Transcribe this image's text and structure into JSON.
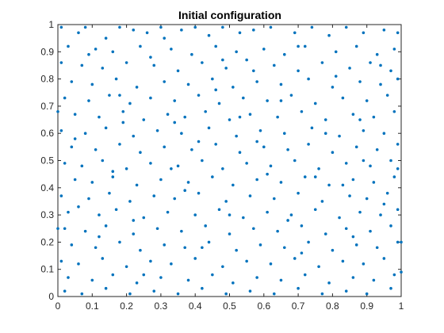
{
  "chart_data": {
    "type": "scatter",
    "title": "Initial configuration",
    "xlabel": "",
    "ylabel": "",
    "xlim": [
      0,
      1
    ],
    "ylim": [
      0,
      1
    ],
    "grid": false,
    "box": true,
    "legend": "none",
    "x_ticks": [
      "0",
      "0.1",
      "0.2",
      "0.3",
      "0.4",
      "0.5",
      "0.6",
      "0.7",
      "0.8",
      "0.9",
      "1"
    ],
    "y_ticks": [
      "0",
      "0.1",
      "0.2",
      "0.3",
      "0.4",
      "0.5",
      "0.6",
      "0.7",
      "0.8",
      "0.9",
      "1"
    ],
    "x_tick_values": [
      0,
      0.1,
      0.2,
      0.3,
      0.4,
      0.5,
      0.6,
      0.7,
      0.8,
      0.9,
      1
    ],
    "y_tick_values": [
      0,
      0.1,
      0.2,
      0.3,
      0.4,
      0.5,
      0.6,
      0.7,
      0.8,
      0.9,
      1
    ],
    "marker_color": "#0072BD",
    "series": [
      {
        "points": [
          [
            0.01,
            0.99
          ],
          [
            0.06,
            0.97
          ],
          [
            0.08,
            0.99
          ],
          [
            0.14,
            0.95
          ],
          [
            0.18,
            0.99
          ],
          [
            0.22,
            0.98
          ],
          [
            0.26,
            0.97
          ],
          [
            0.3,
            0.99
          ],
          [
            0.36,
            0.98
          ],
          [
            0.4,
            0.99
          ],
          [
            0.44,
            0.96
          ],
          [
            0.48,
            0.99
          ],
          [
            0.53,
            0.97
          ],
          [
            0.57,
            0.98
          ],
          [
            0.62,
            0.99
          ],
          [
            0.69,
            0.97
          ],
          [
            0.74,
            0.99
          ],
          [
            0.79,
            0.96
          ],
          [
            0.84,
            0.99
          ],
          [
            0.89,
            0.97
          ],
          [
            0.95,
            0.98
          ],
          [
            0.99,
            0.97
          ],
          [
            0.03,
            0.92
          ],
          [
            0.11,
            0.91
          ],
          [
            0.16,
            0.9
          ],
          [
            0.24,
            0.92
          ],
          [
            0.33,
            0.91
          ],
          [
            0.39,
            0.89
          ],
          [
            0.46,
            0.92
          ],
          [
            0.52,
            0.9
          ],
          [
            0.6,
            0.91
          ],
          [
            0.66,
            0.89
          ],
          [
            0.72,
            0.92
          ],
          [
            0.81,
            0.9
          ],
          [
            0.87,
            0.92
          ],
          [
            0.93,
            0.89
          ],
          [
            0.98,
            0.91
          ],
          [
            0.01,
            0.86
          ],
          [
            0.07,
            0.85
          ],
          [
            0.13,
            0.84
          ],
          [
            0.2,
            0.86
          ],
          [
            0.28,
            0.85
          ],
          [
            0.35,
            0.83
          ],
          [
            0.42,
            0.86
          ],
          [
            0.49,
            0.84
          ],
          [
            0.55,
            0.87
          ],
          [
            0.63,
            0.85
          ],
          [
            0.7,
            0.83
          ],
          [
            0.77,
            0.86
          ],
          [
            0.85,
            0.84
          ],
          [
            0.91,
            0.86
          ],
          [
            0.97,
            0.83
          ],
          [
            0.04,
            0.79
          ],
          [
            0.1,
            0.78
          ],
          [
            0.17,
            0.8
          ],
          [
            0.23,
            0.77
          ],
          [
            0.31,
            0.79
          ],
          [
            0.38,
            0.78
          ],
          [
            0.45,
            0.8
          ],
          [
            0.51,
            0.77
          ],
          [
            0.58,
            0.79
          ],
          [
            0.65,
            0.78
          ],
          [
            0.73,
            0.8
          ],
          [
            0.8,
            0.77
          ],
          [
            0.88,
            0.79
          ],
          [
            0.94,
            0.78
          ],
          [
            0.99,
            0.8
          ],
          [
            0.02,
            0.73
          ],
          [
            0.09,
            0.72
          ],
          [
            0.15,
            0.74
          ],
          [
            0.21,
            0.71
          ],
          [
            0.27,
            0.73
          ],
          [
            0.34,
            0.72
          ],
          [
            0.41,
            0.74
          ],
          [
            0.47,
            0.71
          ],
          [
            0.54,
            0.73
          ],
          [
            0.61,
            0.72
          ],
          [
            0.68,
            0.74
          ],
          [
            0.75,
            0.71
          ],
          [
            0.83,
            0.73
          ],
          [
            0.9,
            0.72
          ],
          [
            0.96,
            0.74
          ],
          [
            0.05,
            0.67
          ],
          [
            0.12,
            0.66
          ],
          [
            0.19,
            0.68
          ],
          [
            0.25,
            0.65
          ],
          [
            0.32,
            0.67
          ],
          [
            0.37,
            0.66
          ],
          [
            0.43,
            0.68
          ],
          [
            0.5,
            0.65
          ],
          [
            0.56,
            0.67
          ],
          [
            0.64,
            0.66
          ],
          [
            0.71,
            0.68
          ],
          [
            0.78,
            0.65
          ],
          [
            0.86,
            0.67
          ],
          [
            0.92,
            0.66
          ],
          [
            0.98,
            0.68
          ],
          [
            0.01,
            0.61
          ],
          [
            0.08,
            0.6
          ],
          [
            0.14,
            0.62
          ],
          [
            0.22,
            0.59
          ],
          [
            0.29,
            0.61
          ],
          [
            0.36,
            0.6
          ],
          [
            0.44,
            0.62
          ],
          [
            0.52,
            0.59
          ],
          [
            0.59,
            0.61
          ],
          [
            0.66,
            0.6
          ],
          [
            0.74,
            0.62
          ],
          [
            0.82,
            0.59
          ],
          [
            0.89,
            0.61
          ],
          [
            0.95,
            0.6
          ],
          [
            0.04,
            0.55
          ],
          [
            0.11,
            0.54
          ],
          [
            0.18,
            0.56
          ],
          [
            0.24,
            0.53
          ],
          [
            0.31,
            0.55
          ],
          [
            0.39,
            0.54
          ],
          [
            0.46,
            0.56
          ],
          [
            0.53,
            0.53
          ],
          [
            0.6,
            0.55
          ],
          [
            0.67,
            0.54
          ],
          [
            0.73,
            0.56
          ],
          [
            0.8,
            0.53
          ],
          [
            0.87,
            0.55
          ],
          [
            0.93,
            0.54
          ],
          [
            0.99,
            0.56
          ],
          [
            0.02,
            0.49
          ],
          [
            0.07,
            0.48
          ],
          [
            0.13,
            0.5
          ],
          [
            0.2,
            0.47
          ],
          [
            0.27,
            0.49
          ],
          [
            0.35,
            0.48
          ],
          [
            0.42,
            0.5
          ],
          [
            0.48,
            0.47
          ],
          [
            0.55,
            0.49
          ],
          [
            0.62,
            0.48
          ],
          [
            0.69,
            0.5
          ],
          [
            0.76,
            0.47
          ],
          [
            0.84,
            0.49
          ],
          [
            0.91,
            0.48
          ],
          [
            0.97,
            0.5
          ],
          [
            0.05,
            0.43
          ],
          [
            0.1,
            0.42
          ],
          [
            0.16,
            0.44
          ],
          [
            0.23,
            0.41
          ],
          [
            0.3,
            0.43
          ],
          [
            0.38,
            0.42
          ],
          [
            0.45,
            0.44
          ],
          [
            0.51,
            0.41
          ],
          [
            0.58,
            0.43
          ],
          [
            0.65,
            0.42
          ],
          [
            0.72,
            0.44
          ],
          [
            0.79,
            0.41
          ],
          [
            0.86,
            0.43
          ],
          [
            0.92,
            0.42
          ],
          [
            0.98,
            0.44
          ],
          [
            0.01,
            0.37
          ],
          [
            0.09,
            0.36
          ],
          [
            0.15,
            0.38
          ],
          [
            0.21,
            0.35
          ],
          [
            0.28,
            0.37
          ],
          [
            0.34,
            0.36
          ],
          [
            0.41,
            0.38
          ],
          [
            0.49,
            0.35
          ],
          [
            0.56,
            0.37
          ],
          [
            0.63,
            0.36
          ],
          [
            0.7,
            0.38
          ],
          [
            0.77,
            0.35
          ],
          [
            0.85,
            0.37
          ],
          [
            0.9,
            0.36
          ],
          [
            0.96,
            0.38
          ],
          [
            0.03,
            0.31
          ],
          [
            0.12,
            0.3
          ],
          [
            0.17,
            0.32
          ],
          [
            0.25,
            0.29
          ],
          [
            0.32,
            0.31
          ],
          [
            0.4,
            0.3
          ],
          [
            0.47,
            0.32
          ],
          [
            0.54,
            0.29
          ],
          [
            0.61,
            0.31
          ],
          [
            0.68,
            0.3
          ],
          [
            0.75,
            0.32
          ],
          [
            0.82,
            0.29
          ],
          [
            0.88,
            0.31
          ],
          [
            0.94,
            0.3
          ],
          [
            0.99,
            0.32
          ],
          [
            0.02,
            0.25
          ],
          [
            0.08,
            0.24
          ],
          [
            0.14,
            0.26
          ],
          [
            0.22,
            0.23
          ],
          [
            0.29,
            0.25
          ],
          [
            0.36,
            0.24
          ],
          [
            0.43,
            0.26
          ],
          [
            0.5,
            0.23
          ],
          [
            0.57,
            0.25
          ],
          [
            0.64,
            0.24
          ],
          [
            0.71,
            0.26
          ],
          [
            0.78,
            0.23
          ],
          [
            0.84,
            0.25
          ],
          [
            0.91,
            0.24
          ],
          [
            0.97,
            0.26
          ],
          [
            0.04,
            0.19
          ],
          [
            0.11,
            0.18
          ],
          [
            0.18,
            0.2
          ],
          [
            0.24,
            0.17
          ],
          [
            0.31,
            0.19
          ],
          [
            0.37,
            0.18
          ],
          [
            0.44,
            0.2
          ],
          [
            0.52,
            0.17
          ],
          [
            0.59,
            0.19
          ],
          [
            0.66,
            0.18
          ],
          [
            0.73,
            0.2
          ],
          [
            0.8,
            0.17
          ],
          [
            0.87,
            0.19
          ],
          [
            0.93,
            0.18
          ],
          [
            0.99,
            0.2
          ],
          [
            0.01,
            0.13
          ],
          [
            0.06,
            0.12
          ],
          [
            0.13,
            0.14
          ],
          [
            0.2,
            0.11
          ],
          [
            0.27,
            0.13
          ],
          [
            0.33,
            0.12
          ],
          [
            0.4,
            0.14
          ],
          [
            0.48,
            0.11
          ],
          [
            0.55,
            0.13
          ],
          [
            0.62,
            0.12
          ],
          [
            0.69,
            0.14
          ],
          [
            0.76,
            0.11
          ],
          [
            0.83,
            0.13
          ],
          [
            0.89,
            0.12
          ],
          [
            0.95,
            0.14
          ],
          [
            0.03,
            0.07
          ],
          [
            0.1,
            0.06
          ],
          [
            0.16,
            0.08
          ],
          [
            0.23,
            0.05
          ],
          [
            0.3,
            0.07
          ],
          [
            0.38,
            0.06
          ],
          [
            0.45,
            0.08
          ],
          [
            0.51,
            0.05
          ],
          [
            0.58,
            0.07
          ],
          [
            0.65,
            0.06
          ],
          [
            0.72,
            0.08
          ],
          [
            0.79,
            0.05
          ],
          [
            0.86,
            0.07
          ],
          [
            0.92,
            0.06
          ],
          [
            0.98,
            0.08
          ],
          [
            0.02,
            0.02
          ],
          [
            0.07,
            0.01
          ],
          [
            0.14,
            0.03
          ],
          [
            0.21,
            0.01
          ],
          [
            0.28,
            0.02
          ],
          [
            0.35,
            0.01
          ],
          [
            0.42,
            0.03
          ],
          [
            0.49,
            0.01
          ],
          [
            0.56,
            0.02
          ],
          [
            0.63,
            0.01
          ],
          [
            0.7,
            0.03
          ],
          [
            0.77,
            0.01
          ],
          [
            0.84,
            0.02
          ],
          [
            0.9,
            0.01
          ],
          [
            0.97,
            0.03
          ],
          [
            0.0,
            0.25
          ],
          [
            0.0,
            0.68
          ],
          [
            1.0,
            0.2
          ],
          [
            1.0,
            0.09
          ],
          [
            0.99,
            0.47
          ],
          [
            0.06,
            0.33
          ],
          [
            0.19,
            0.64
          ],
          [
            0.27,
            0.88
          ],
          [
            0.33,
            0.47
          ],
          [
            0.41,
            0.57
          ],
          [
            0.57,
            0.83
          ],
          [
            0.65,
            0.72
          ],
          [
            0.71,
            0.16
          ],
          [
            0.83,
            0.41
          ],
          [
            0.88,
            0.65
          ],
          [
            0.94,
            0.85
          ],
          [
            0.12,
            0.22
          ],
          [
            0.25,
            0.08
          ],
          [
            0.37,
            0.39
          ],
          [
            0.5,
            0.3
          ],
          [
            0.61,
            0.45
          ],
          [
            0.78,
            0.6
          ],
          [
            0.89,
            0.5
          ],
          [
            0.46,
            0.76
          ],
          [
            0.16,
            0.46
          ],
          [
            0.05,
            0.58
          ],
          [
            0.7,
            0.92
          ],
          [
            0.34,
            0.64
          ],
          [
            0.53,
            0.66
          ],
          [
            0.81,
            0.81
          ],
          [
            0.95,
            0.34
          ],
          [
            0.09,
            0.89
          ],
          [
            0.22,
            0.28
          ],
          [
            0.42,
            0.18
          ],
          [
            0.67,
            0.28
          ],
          [
            0.86,
            0.22
          ],
          [
            0.31,
            0.95
          ],
          [
            0.58,
            0.57
          ],
          [
            0.75,
            0.44
          ],
          [
            0.18,
            0.74
          ],
          [
            0.48,
            0.87
          ]
        ]
      }
    ]
  }
}
